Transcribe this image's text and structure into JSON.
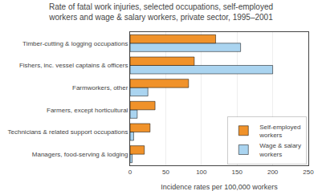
{
  "chart_data": {
    "type": "bar",
    "orientation": "horizontal",
    "title": "Rate of fatal work injuries, selected occupations, self-employed\nworkers and wage & salary workers, private sector, 1995–2001",
    "categories": [
      "Managers, food-serving & lodging",
      "Technicians & related support occupations",
      "Farmers, except horticultural",
      "Farmworkers, other",
      "Fishers, inc. vessel captains & officers",
      "Timber-cutting & logging occupations"
    ],
    "series": [
      {
        "name": "Self-employed\nworkers",
        "color": "#f0922a",
        "values": [
          20,
          28,
          35,
          82,
          90,
          120
        ]
      },
      {
        "name": "Wage & salary\nworkers",
        "color": "#aad4f0",
        "values": [
          3,
          5,
          10,
          25,
          200,
          155
        ]
      }
    ],
    "xlabel": "Incidence rates per 100,000 workers",
    "xlim": [
      0,
      250
    ],
    "xticks": [
      0,
      50,
      100,
      150,
      200,
      250
    ],
    "grid": true,
    "legend": "lower right"
  }
}
